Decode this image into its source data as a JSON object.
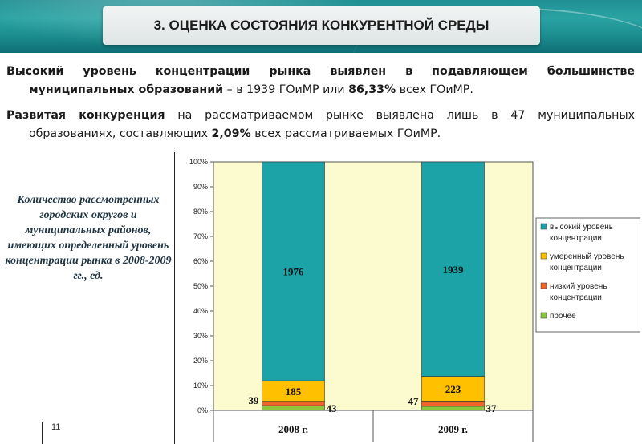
{
  "header": {
    "title": "3. ОЦЕНКА СОСТОЯНИЯ КОНКУРЕНТНОЙ СРЕДЫ"
  },
  "paragraph1": {
    "line1_bold": "Высокий уровень концентрации рынка выявлен в подавляющем большинстве",
    "line2_bold": "муниципальных образований",
    "line2_text": " – в 1939 ГОиМР или ",
    "line2_bold2": "86,33%",
    "line2_text2": " всех ГОиМР."
  },
  "paragraph2": {
    "line1_bold": "Развитая конкуренция",
    "line1_text": " на рассматриваемом рынке выявлена лишь в 47 муниципальных",
    "line2_text": "образованиях, составляющих ",
    "line2_bold": "2,09%",
    "line2_text2": " всех рассматриваемых ГОиМР."
  },
  "caption": "Количество рассмотренных городских округов и муниципальных районов, имеющих определенный уровень концентрации рынка в 2008-2009 гг., ед.",
  "page_number": "11",
  "chart_data": {
    "type": "bar",
    "stacked": "percent",
    "categories": [
      "2008 г.",
      "2009 г."
    ],
    "series": [
      {
        "name": "прочее",
        "values": [
          43,
          37
        ],
        "color": "#8cc63f"
      },
      {
        "name": "низкий уровень концентрации",
        "values": [
          39,
          47
        ],
        "color": "#f0632a"
      },
      {
        "name": "умеренный уровень концентрации",
        "values": [
          185,
          223
        ],
        "color": "#ffc000"
      },
      {
        "name": "высокий уровень концентрации",
        "values": [
          1976,
          1939
        ],
        "color": "#1ba3a8"
      }
    ],
    "y_ticks": [
      "0%",
      "10%",
      "20%",
      "30%",
      "40%",
      "50%",
      "60%",
      "70%",
      "80%",
      "90%",
      "100%"
    ],
    "ylim": [
      0,
      100
    ],
    "legend_position": "right",
    "plot_background": "#fcfbd0"
  }
}
